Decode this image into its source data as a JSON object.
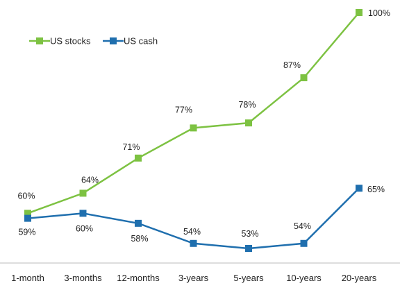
{
  "chart_data": {
    "type": "line",
    "categories": [
      "1-month",
      "3-months",
      "12-months",
      "3-years",
      "5-years",
      "10-years",
      "20-years"
    ],
    "series": [
      {
        "name": "US stocks",
        "color": "#7dc242",
        "values": [
          60,
          64,
          71,
          77,
          78,
          87,
          100
        ],
        "labels": [
          "60%",
          "64%",
          "71%",
          "77%",
          "78%",
          "87%",
          "100%"
        ]
      },
      {
        "name": "US cash",
        "color": "#1f6fae",
        "values": [
          59,
          60,
          58,
          54,
          53,
          54,
          65
        ],
        "labels": [
          "59%",
          "60%",
          "58%",
          "54%",
          "53%",
          "54%",
          "65%"
        ]
      }
    ],
    "ylim": [
      50,
      100
    ],
    "grid": false,
    "legend_position": "top-left"
  }
}
